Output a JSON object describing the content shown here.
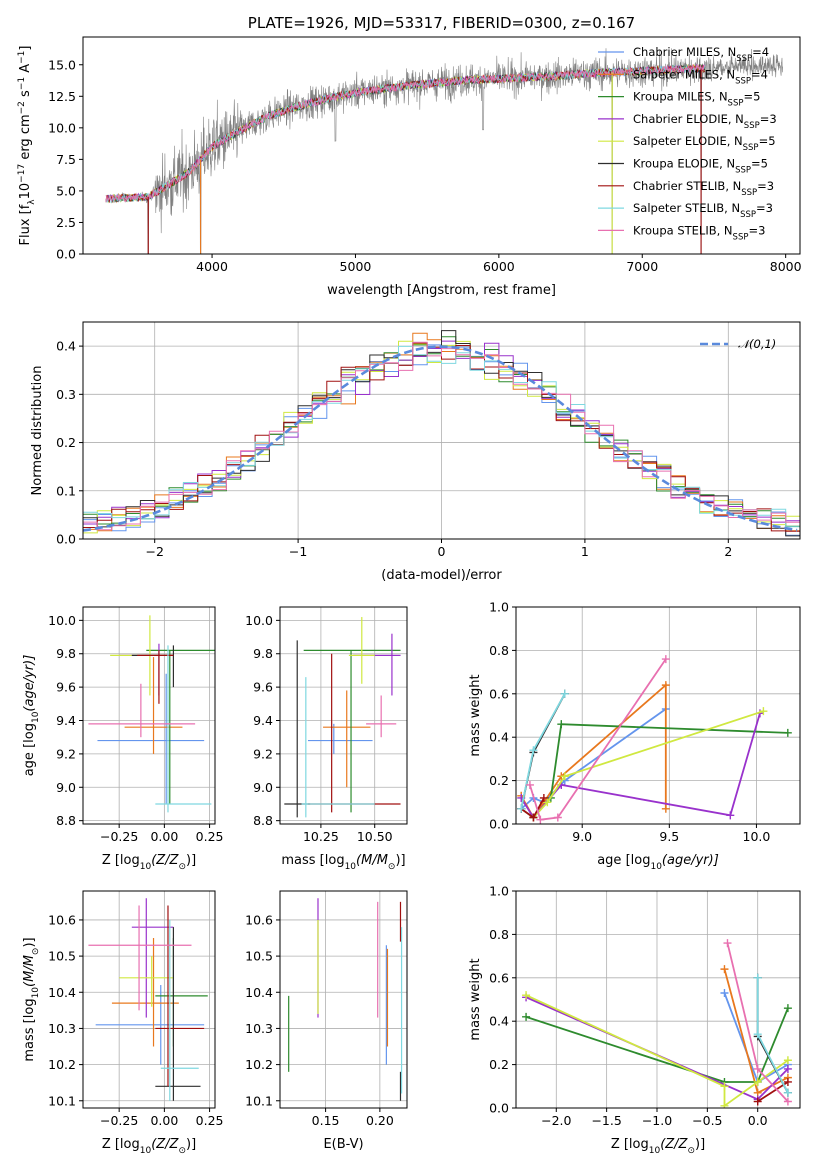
{
  "colors": [
    "#6495ED",
    "#E8781E",
    "#2E8B2E",
    "#9932CC",
    "#D0E840",
    "#2E2E2E",
    "#A01010",
    "#7FD8E0",
    "#E870B0"
  ],
  "fit_names": [
    "Chabrier MILES",
    "Salpeter MILES",
    "Kroupa MILES",
    "Chabrier ELODIE",
    "Salpeter ELODIE",
    "Kroupa ELODIE",
    "Chabrier STELIB",
    "Salpeter STELIB",
    "Kroupa STELIB"
  ],
  "chart_data": [
    {
      "id": "spectrum",
      "type": "line",
      "title": "PLATE=1926, MJD=53317, FIBERID=0300, z=0.167",
      "xlabel": "wavelength [Angstrom, rest frame]",
      "ylabel_html": "Flux [f_λ 10^-17 erg cm^-2 s^-1 A^-1]",
      "ylabel_parts": [
        "Flux [f",
        "λ",
        "10",
        "−17",
        " erg cm",
        "−2",
        " s",
        "−1",
        " A",
        "−1",
        "]"
      ],
      "xlim": [
        3100,
        8100
      ],
      "ylim": [
        0,
        17.2
      ],
      "xticks": [
        4000,
        5000,
        6000,
        7000,
        8000
      ],
      "xtick_labels": [
        "4000",
        "5000",
        "6000",
        "7000",
        "8000"
      ],
      "yticks": [
        0,
        2.5,
        5,
        7.5,
        10,
        12.5,
        15
      ],
      "ytick_labels": [
        "0.0",
        "2.5",
        "5.0",
        "7.5",
        "10.0",
        "12.5",
        "15.0"
      ],
      "data_anchor_wavelength": [
        3250,
        3550,
        3700,
        3850,
        4000,
        4200,
        4400,
        4600,
        4800,
        5000,
        5200,
        5400,
        5600,
        5800,
        6000,
        6200,
        6400,
        6600,
        6800,
        7000,
        7200,
        7400,
        7600,
        7800
      ],
      "data_anchor_flux": [
        4.4,
        4.5,
        5.5,
        6.6,
        8.5,
        9.8,
        11.0,
        11.7,
        12.3,
        12.8,
        13.1,
        13.4,
        13.6,
        13.8,
        13.9,
        14.0,
        14.1,
        14.3,
        14.4,
        14.5,
        14.6,
        14.7,
        14.8,
        14.9
      ],
      "legend": [
        {
          "name": "Chabrier MILES",
          "nssp": "4"
        },
        {
          "name": "Salpeter MILES",
          "nssp": "4"
        },
        {
          "name": "Kroupa MILES",
          "nssp": "5"
        },
        {
          "name": "Chabrier ELODIE",
          "nssp": "3"
        },
        {
          "name": "Salpeter ELODIE",
          "nssp": "5"
        },
        {
          "name": "Kroupa ELODIE",
          "nssp": "5"
        },
        {
          "name": "Chabrier STELIB",
          "nssp": "3"
        },
        {
          "name": "Salpeter STELIB",
          "nssp": "3"
        },
        {
          "name": "Kroupa STELIB",
          "nssp": "3"
        }
      ],
      "nssp_label_main": "N",
      "nssp_label_sub": "SSP",
      "legend_placement": "right"
    },
    {
      "id": "residuals",
      "type": "step",
      "xlabel": "(data-model)/error",
      "ylabel": "Normed distribution",
      "xlim": [
        -2.5,
        2.5
      ],
      "ylim": [
        0,
        0.45
      ],
      "xticks": [
        -2,
        -1,
        0,
        1,
        2
      ],
      "xtick_labels": [
        "−2",
        "−1",
        "0",
        "1",
        "2"
      ],
      "yticks": [
        0,
        0.1,
        0.2,
        0.3,
        0.4
      ],
      "ytick_labels": [
        "0.0",
        "0.1",
        "0.2",
        "0.3",
        "0.4"
      ],
      "bin_width": 0.1,
      "gaussian_label": "𝒩(0,1)",
      "gaussian_color": "#5A8ADC",
      "legend_placement": "top-right"
    },
    {
      "id": "age_vs_Z",
      "type": "errorbar",
      "xlabel": "Z [log10(Z/Z⊙)]",
      "xlabel_parts": [
        "Z [log",
        "10",
        "(Z/Z",
        "⊙",
        ")]"
      ],
      "ylabel_parts": [
        "age  [log",
        "10",
        "(age/yr)]"
      ],
      "xlim": [
        -0.45,
        0.28
      ],
      "ylim": [
        8.78,
        10.08
      ],
      "xticks": [
        -0.25,
        0,
        0.25
      ],
      "xtick_labels": [
        "−0.25",
        "0.00",
        "0.25"
      ],
      "yticks": [
        8.8,
        9.0,
        9.2,
        9.4,
        9.6,
        9.8,
        10.0
      ],
      "ytick_labels": [
        "8.8",
        "9.0",
        "9.2",
        "9.4",
        "9.6",
        "9.8",
        "10.0"
      ],
      "points": [
        {
          "c": 0,
          "x": 0.01,
          "y": 9.28,
          "xe": [
            -0.37,
            0.22
          ],
          "ye": [
            8.9,
            9.68
          ]
        },
        {
          "c": 1,
          "x": -0.06,
          "y": 9.36,
          "xe": [
            -0.22,
            0.1
          ],
          "ye": [
            9.2,
            9.78
          ]
        },
        {
          "c": 2,
          "x": 0.03,
          "y": 9.82,
          "xe": [
            -0.1,
            0.28
          ],
          "ye": [
            8.9,
            9.82
          ]
        },
        {
          "c": 3,
          "x": -0.03,
          "y": 9.79,
          "xe": [
            -0.25,
            0.05
          ],
          "ye": [
            9.55,
            9.86
          ]
        },
        {
          "c": 4,
          "x": -0.08,
          "y": 9.79,
          "xe": [
            -0.3,
            0.05
          ],
          "ye": [
            9.55,
            10.03
          ]
        },
        {
          "c": 5,
          "x": 0.05,
          "y": 9.79,
          "xe": [
            -0.18,
            0.05
          ],
          "ye": [
            9.6,
            9.85
          ]
        },
        {
          "c": 6,
          "x": -0.03,
          "y": 9.79,
          "xe": [
            -0.15,
            0.05
          ],
          "ye": [
            9.5,
            9.82
          ]
        },
        {
          "c": 7,
          "x": 0.02,
          "y": 8.9,
          "xe": [
            -0.05,
            0.26
          ],
          "ye": [
            8.85,
            9.85
          ]
        },
        {
          "c": 8,
          "x": -0.13,
          "y": 9.38,
          "xe": [
            -0.42,
            0.17
          ],
          "ye": [
            9.3,
            9.62
          ]
        }
      ]
    },
    {
      "id": "age_vs_mass",
      "type": "errorbar",
      "xlabel_parts": [
        "mass [log",
        "10",
        "(M/M",
        "⊙",
        ")]"
      ],
      "xlim": [
        10.06,
        10.65
      ],
      "ylim": [
        8.78,
        10.08
      ],
      "xticks": [
        10.25,
        10.5
      ],
      "xtick_labels": [
        "10.25",
        "10.50"
      ],
      "yticks": [
        8.8,
        9.0,
        9.2,
        9.4,
        9.6,
        9.8,
        10.0
      ],
      "ytick_labels": [
        "8.8",
        "9.0",
        "9.2",
        "9.4",
        "9.6",
        "9.8",
        "10.0"
      ],
      "points": [
        {
          "c": 0,
          "x": 10.31,
          "y": 9.28,
          "xe": [
            10.19,
            10.49
          ],
          "ye": [
            9.2,
            9.38
          ]
        },
        {
          "c": 1,
          "x": 10.37,
          "y": 9.36,
          "xe": [
            10.26,
            10.48
          ],
          "ye": [
            9.0,
            9.58
          ]
        },
        {
          "c": 2,
          "x": 10.39,
          "y": 9.82,
          "xe": [
            10.17,
            10.62
          ],
          "ye": [
            8.85,
            9.82
          ]
        },
        {
          "c": 3,
          "x": 10.58,
          "y": 9.79,
          "xe": [
            10.4,
            10.62
          ],
          "ye": [
            9.55,
            9.92
          ]
        },
        {
          "c": 4,
          "x": 10.44,
          "y": 9.79,
          "xe": [
            10.38,
            10.5
          ],
          "ye": [
            9.62,
            10.02
          ]
        },
        {
          "c": 5,
          "x": 10.14,
          "y": 8.9,
          "xe": [
            10.08,
            10.2
          ],
          "ye": [
            8.82,
            9.88
          ]
        },
        {
          "c": 6,
          "x": 10.3,
          "y": 8.9,
          "xe": [
            10.19,
            10.62
          ],
          "ye": [
            8.85,
            9.8
          ]
        },
        {
          "c": 7,
          "x": 10.18,
          "y": 8.9,
          "xe": [
            10.16,
            10.5
          ],
          "ye": [
            8.82,
            9.66
          ]
        },
        {
          "c": 8,
          "x": 10.53,
          "y": 9.38,
          "xe": [
            10.46,
            10.6
          ],
          "ye": [
            9.3,
            9.55
          ]
        }
      ]
    },
    {
      "id": "massweight_vs_age",
      "type": "line",
      "xlabel_parts": [
        "age  [log",
        "10",
        "(age/yr)]"
      ],
      "ylabel": "mass weight",
      "xlim": [
        8.62,
        10.25
      ],
      "ylim": [
        0,
        1.0
      ],
      "xticks": [
        9.0,
        9.5,
        10.0
      ],
      "xtick_labels": [
        "9.0",
        "9.5",
        "10.0"
      ],
      "yticks": [
        0,
        0.2,
        0.4,
        0.6,
        0.8,
        1.0
      ],
      "ytick_labels": [
        "0.0",
        "0.2",
        "0.4",
        "0.6",
        "0.8",
        "1.0"
      ],
      "series": [
        {
          "c": 0,
          "x": [
            8.65,
            8.72,
            8.78,
            8.9,
            9.48
          ],
          "y": [
            0.07,
            0.12,
            0.1,
            0.2,
            0.53
          ]
        },
        {
          "c": 1,
          "x": [
            8.65,
            8.72,
            8.78,
            8.88,
            9.48,
            9.48
          ],
          "y": [
            0.13,
            0.03,
            0.1,
            0.22,
            0.64,
            0.07
          ]
        },
        {
          "c": 2,
          "x": [
            8.65,
            8.72,
            8.82,
            8.88,
            10.18
          ],
          "y": [
            0.07,
            0.03,
            0.12,
            0.46,
            0.42
          ]
        },
        {
          "c": 3,
          "x": [
            8.65,
            8.72,
            8.88,
            9.85,
            10.02
          ],
          "y": [
            0.12,
            0.03,
            0.18,
            0.04,
            0.51
          ]
        },
        {
          "c": 4,
          "x": [
            8.72,
            8.8,
            8.9,
            10.04
          ],
          "y": [
            0.03,
            0.1,
            0.22,
            0.52
          ]
        },
        {
          "c": 5,
          "x": [
            8.65,
            8.72,
            8.9
          ],
          "y": [
            0.07,
            0.33,
            0.6
          ]
        },
        {
          "c": 6,
          "x": [
            8.65,
            8.72,
            8.78
          ],
          "y": [
            0.07,
            0.03,
            0.12
          ]
        },
        {
          "c": 7,
          "x": [
            8.65,
            8.72,
            8.9
          ],
          "y": [
            0.07,
            0.34,
            0.6
          ]
        },
        {
          "c": 8,
          "x": [
            8.7,
            8.76,
            8.86,
            9.48
          ],
          "y": [
            0.18,
            0.02,
            0.03,
            0.76
          ]
        }
      ]
    },
    {
      "id": "mass_vs_Z",
      "type": "errorbar",
      "xlabel_parts": [
        "Z [log",
        "10",
        "(Z/Z",
        "⊙",
        ")]"
      ],
      "ylabel_parts": [
        "mass [log",
        "10",
        "(M/M",
        "⊙",
        ")]"
      ],
      "xlim": [
        -0.45,
        0.28
      ],
      "ylim": [
        10.08,
        10.68
      ],
      "xticks": [
        -0.25,
        0,
        0.25
      ],
      "xtick_labels": [
        "−0.25",
        "0.00",
        "0.25"
      ],
      "yticks": [
        10.1,
        10.2,
        10.3,
        10.4,
        10.5,
        10.6
      ],
      "ytick_labels": [
        "10.1",
        "10.2",
        "10.3",
        "10.4",
        "10.5",
        "10.6"
      ],
      "points": [
        {
          "c": 0,
          "x": -0.02,
          "y": 10.31,
          "xe": [
            -0.38,
            0.22
          ],
          "ye": [
            10.2,
            10.42
          ]
        },
        {
          "c": 1,
          "x": -0.06,
          "y": 10.37,
          "xe": [
            -0.29,
            0.08
          ],
          "ye": [
            10.25,
            10.55
          ]
        },
        {
          "c": 2,
          "x": 0.05,
          "y": 10.39,
          "xe": [
            -0.05,
            0.24
          ],
          "ye": [
            10.25,
            10.55
          ]
        },
        {
          "c": 3,
          "x": -0.1,
          "y": 10.58,
          "xe": [
            -0.18,
            0.05
          ],
          "ye": [
            10.33,
            10.66
          ]
        },
        {
          "c": 4,
          "x": -0.07,
          "y": 10.44,
          "xe": [
            -0.25,
            0.05
          ],
          "ye": [
            10.36,
            10.5
          ]
        },
        {
          "c": 5,
          "x": 0.05,
          "y": 10.14,
          "xe": [
            -0.05,
            0.2
          ],
          "ye": [
            10.1,
            10.58
          ]
        },
        {
          "c": 6,
          "x": 0.02,
          "y": 10.3,
          "xe": [
            -0.05,
            0.22
          ],
          "ye": [
            10.14,
            10.64
          ]
        },
        {
          "c": 7,
          "x": 0.03,
          "y": 10.19,
          "xe": [
            -0.02,
            0.19
          ],
          "ye": [
            10.1,
            10.6
          ]
        },
        {
          "c": 8,
          "x": -0.14,
          "y": 10.53,
          "xe": [
            -0.42,
            0.15
          ],
          "ye": [
            10.35,
            10.64
          ]
        }
      ]
    },
    {
      "id": "mass_vs_EBV",
      "type": "errorbar",
      "xlabel": "E(B-V)",
      "xlim": [
        0.108,
        0.225
      ],
      "ylim": [
        10.08,
        10.68
      ],
      "xticks": [
        0.15,
        0.2
      ],
      "xtick_labels": [
        "0.15",
        "0.20"
      ],
      "yticks": [
        10.1,
        10.2,
        10.3,
        10.4,
        10.5,
        10.6
      ],
      "ytick_labels": [
        "10.1",
        "10.2",
        "10.3",
        "10.4",
        "10.5",
        "10.6"
      ],
      "points": [
        {
          "c": 0,
          "x": 0.206,
          "y": 10.31,
          "ye": [
            10.2,
            10.53
          ]
        },
        {
          "c": 1,
          "x": 0.207,
          "y": 10.37,
          "ye": [
            10.25,
            10.52
          ]
        },
        {
          "c": 2,
          "x": 0.116,
          "y": 10.28,
          "ye": [
            10.18,
            10.39
          ]
        },
        {
          "c": 3,
          "x": 0.143,
          "y": 10.58,
          "ye": [
            10.33,
            10.66
          ]
        },
        {
          "c": 4,
          "x": 0.143,
          "y": 10.44,
          "ye": [
            10.34,
            10.6
          ]
        },
        {
          "c": 5,
          "x": 0.219,
          "y": 10.14,
          "ye": [
            10.1,
            10.18
          ]
        },
        {
          "c": 6,
          "x": 0.219,
          "y": 10.6,
          "ye": [
            10.54,
            10.65
          ]
        },
        {
          "c": 7,
          "x": 0.22,
          "y": 10.19,
          "ye": [
            10.12,
            10.58
          ]
        },
        {
          "c": 8,
          "x": 0.198,
          "y": 10.53,
          "ye": [
            10.33,
            10.65
          ]
        }
      ]
    },
    {
      "id": "massweight_vs_Z",
      "type": "line",
      "xlabel_parts": [
        "Z [log",
        "10",
        "(Z/Z",
        "⊙",
        ")]"
      ],
      "ylabel": "mass weight",
      "xlim": [
        -2.4,
        0.42
      ],
      "ylim": [
        0,
        1.0
      ],
      "xticks": [
        -2.0,
        -1.5,
        -1.0,
        -0.5,
        0.0
      ],
      "xtick_labels": [
        "−2.0",
        "−1.5",
        "−1.0",
        "−0.5",
        "0.0"
      ],
      "yticks": [
        0,
        0.2,
        0.4,
        0.6,
        0.8,
        1.0
      ],
      "ytick_labels": [
        "0.0",
        "0.2",
        "0.4",
        "0.6",
        "0.8",
        "1.0"
      ],
      "series": [
        {
          "c": 0,
          "x": [
            -0.33,
            0.0,
            0.3
          ],
          "y": [
            0.53,
            0.12,
            0.2
          ]
        },
        {
          "c": 1,
          "x": [
            -0.33,
            0.0,
            0.3
          ],
          "y": [
            0.64,
            0.07,
            0.14
          ]
        },
        {
          "c": 2,
          "x": [
            -2.3,
            -0.33,
            0.0,
            0.3
          ],
          "y": [
            0.42,
            0.12,
            0.12,
            0.46
          ]
        },
        {
          "c": 3,
          "x": [
            -2.3,
            0.0,
            0.3
          ],
          "y": [
            0.51,
            0.04,
            0.18
          ]
        },
        {
          "c": 4,
          "x": [
            -2.3,
            -0.33,
            -0.33,
            0.0,
            0.3
          ],
          "y": [
            0.52,
            0.1,
            0.01,
            0.12,
            0.22
          ]
        },
        {
          "c": 5,
          "x": [
            0.0,
            0.0,
            0.3
          ],
          "y": [
            0.6,
            0.33,
            0.07
          ]
        },
        {
          "c": 6,
          "x": [
            0.0,
            0.3
          ],
          "y": [
            0.03,
            0.12
          ]
        },
        {
          "c": 7,
          "x": [
            0.0,
            0.0,
            0.3
          ],
          "y": [
            0.6,
            0.34,
            0.07
          ]
        },
        {
          "c": 8,
          "x": [
            -0.3,
            0.0,
            0.3
          ],
          "y": [
            0.76,
            0.18,
            0.03
          ]
        }
      ]
    }
  ]
}
